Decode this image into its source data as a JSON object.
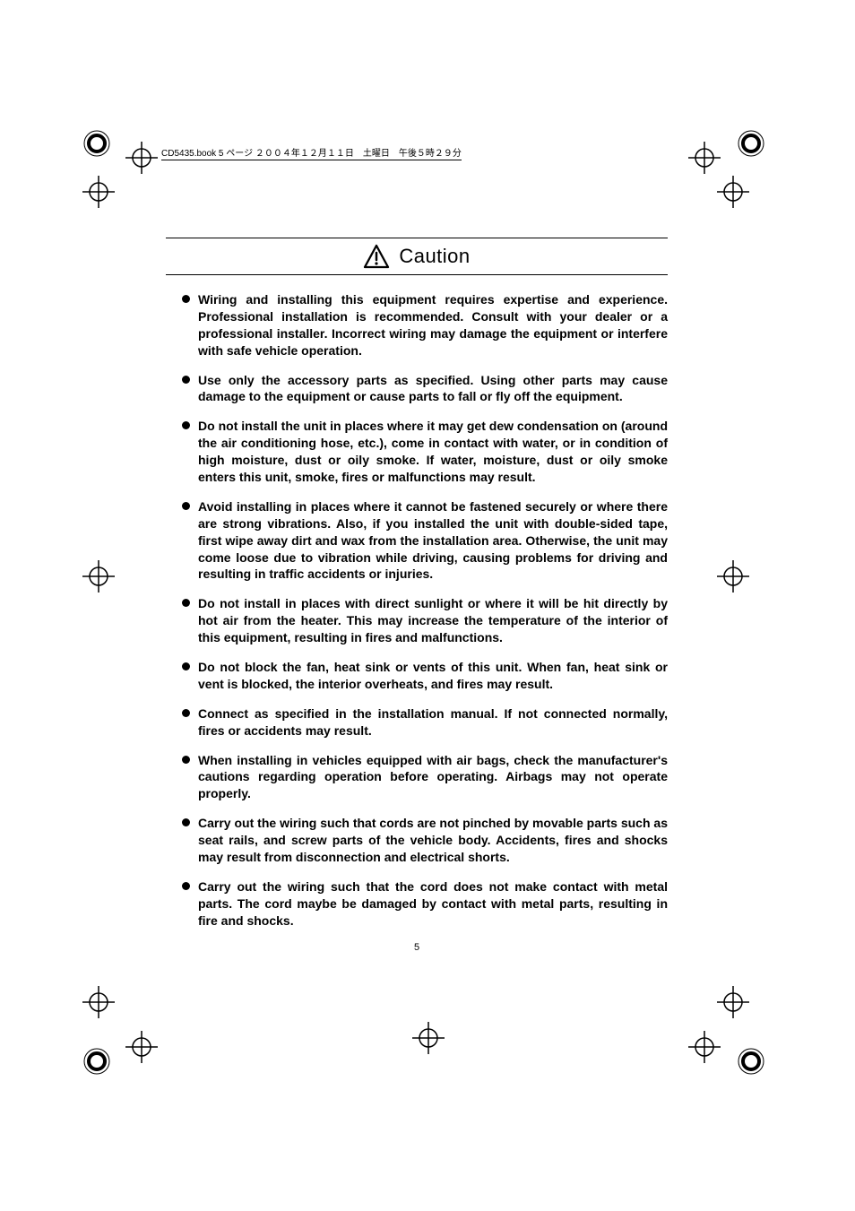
{
  "meta": {
    "header_strip": "CD5435.book  5 ページ  ２００４年１２月１１日　土曜日　午後５時２９分"
  },
  "title": {
    "text": "Caution",
    "font_size": 22,
    "icon": "caution-triangle"
  },
  "bullets": [
    "Wiring and installing this equipment requires expertise and experience.  Professional installation is recommended.  Consult with your dealer or a professional installer.  Incorrect wiring may damage the equipment or interfere with safe vehicle operation.",
    "Use only the accessory parts as specified.  Using other parts may cause damage to the equipment or cause parts to fall or fly off the equipment.",
    "Do not install the unit in places where it may get dew condensation on (around the air conditioning hose, etc.), come in contact with water, or in condition of high moisture, dust or oily smoke. If water, moisture, dust or oily smoke enters this unit, smoke, fires or malfunctions may result.",
    "Avoid installing in places where it cannot be fastened securely or where there are strong vibrations. Also, if you installed the unit with double-sided tape, first wipe away dirt and wax from the installation area. Otherwise, the unit may come loose due to vibration while driving, causing problems for driving and resulting in traffic accidents or injuries.",
    "Do not install in places with direct sunlight or where it will be hit directly by hot air from the heater. This may increase the temperature of the interior of this equipment, resulting in fires and malfunctions.",
    "Do not block the fan, heat sink or vents of this unit. When fan, heat sink or vent is blocked, the interior overheats, and fires may result.",
    "Connect as specified in the installation manual. If not connected normally, fires or accidents may result.",
    "When installing in vehicles equipped with air bags, check the manufacturer's cautions regarding operation before operating. Airbags may not operate properly.",
    "Carry out the wiring such that cords are not pinched by movable parts such as seat rails, and screw parts of the vehicle body. Accidents, fires and shocks may result from disconnection and electrical shorts.",
    "Carry out the wiring such that the cord does not make contact with metal parts. The cord maybe be damaged by contact with metal parts, resulting in fire and shocks."
  ],
  "page_number": "5",
  "styles": {
    "body_font_size": 14,
    "body_font_weight": 700,
    "line_height": 1.35,
    "text_align": "justify",
    "bullet_color": "#000000",
    "text_color": "#000000",
    "background_color": "#ffffff",
    "rule_color": "#000000",
    "registration_mark_color": "#000000"
  }
}
